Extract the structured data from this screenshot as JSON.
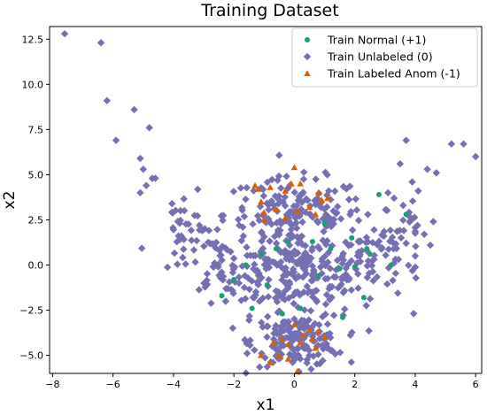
{
  "chart_data": {
    "type": "scatter",
    "title": "Training Dataset",
    "xlabel": "x1",
    "ylabel": "x2",
    "xlim": [
      -8.1,
      6.2
    ],
    "ylim": [
      -6.0,
      13.2
    ],
    "xticks": [
      -8,
      -6,
      -4,
      -2,
      0,
      2,
      4,
      6
    ],
    "yticks": [
      -5.0,
      -2.5,
      0.0,
      2.5,
      5.0,
      7.5,
      10.0,
      12.5
    ],
    "ytick_labels": [
      "−5.0",
      "−2.5",
      "0.0",
      "2.5",
      "5.0",
      "7.5",
      "10.0",
      "12.5"
    ],
    "xtick_labels": [
      "−8",
      "−6",
      "−4",
      "−2",
      "0",
      "2",
      "4",
      "6"
    ],
    "grid": false,
    "legend_position": "top-right",
    "series": [
      {
        "name": "Train Unlabeled (0)",
        "marker": "diamond",
        "color": "#7570b3",
        "points": [
          [
            -7.6,
            12.8
          ],
          [
            -6.4,
            12.3
          ],
          [
            -6.2,
            9.1
          ],
          [
            -5.9,
            6.9
          ],
          [
            -5.3,
            8.6
          ],
          [
            -5.1,
            5.9
          ],
          [
            -4.8,
            7.6
          ],
          [
            -4.7,
            4.8
          ],
          [
            -5.0,
            5.3
          ],
          [
            -4.9,
            4.4
          ],
          [
            -5.1,
            4.0
          ],
          [
            -4.6,
            4.8
          ],
          [
            6.0,
            6.0
          ],
          [
            5.6,
            6.7
          ],
          [
            5.2,
            6.7
          ],
          [
            4.7,
            5.1
          ],
          [
            4.4,
            5.3
          ],
          [
            4.1,
            4.1
          ],
          [
            3.9,
            4.6
          ],
          [
            3.7,
            6.9
          ],
          [
            3.5,
            5.6
          ],
          [
            3.6,
            3.3
          ],
          [
            3.3,
            3.7
          ],
          [
            3.1,
            4.0
          ],
          [
            3.8,
            2.7
          ],
          [
            4.6,
            2.4
          ],
          [
            4.3,
            1.7
          ],
          [
            4.5,
            1.1
          ],
          [
            4.0,
            0.5
          ],
          [
            3.7,
            1.2
          ]
        ],
        "cluster_top": {
          "center": [
            0.0,
            2.8
          ],
          "count": 170
        },
        "cluster_mid": {
          "center": [
            0.0,
            -0.4
          ],
          "count": 260
        },
        "cluster_bottom": {
          "center": [
            0.1,
            -4.2
          ],
          "count": 170
        },
        "wing_left": {
          "count": 60
        },
        "wing_right": {
          "count": 60
        }
      },
      {
        "name": "Train Normal (+1)",
        "marker": "circle",
        "color": "#1b9e77",
        "points": [
          [
            2.8,
            3.9
          ],
          [
            3.7,
            2.8
          ],
          [
            1.0,
            2.3
          ],
          [
            1.2,
            0.9
          ],
          [
            2.4,
            0.9
          ],
          [
            2.0,
            -0.1
          ],
          [
            1.5,
            -0.2
          ],
          [
            2.3,
            -1.8
          ],
          [
            1.6,
            -2.9
          ],
          [
            0.2,
            -2.4
          ],
          [
            -0.4,
            -2.7
          ],
          [
            -1.4,
            -2.4
          ],
          [
            -1.1,
            0.6
          ],
          [
            -1.6,
            0.0
          ],
          [
            -0.2,
            1.3
          ],
          [
            0.6,
            1.3
          ],
          [
            -2.0,
            -0.8
          ],
          [
            -2.4,
            -1.7
          ],
          [
            0.8,
            -0.6
          ],
          [
            -0.9,
            -1.1
          ],
          [
            2.5,
            0.6
          ],
          [
            3.2,
            0.0
          ],
          [
            -0.6,
            0.9
          ],
          [
            1.9,
            1.5
          ]
        ]
      },
      {
        "name": "Train Labeled Anom (-1)",
        "marker": "triangle",
        "color": "#d95f02",
        "points": [
          [
            0.0,
            5.4
          ],
          [
            -1.3,
            4.4
          ],
          [
            -1.2,
            4.2
          ],
          [
            -0.8,
            4.3
          ],
          [
            -0.1,
            4.5
          ],
          [
            0.2,
            4.5
          ],
          [
            -0.3,
            4.1
          ],
          [
            0.8,
            4.0
          ],
          [
            1.1,
            3.7
          ],
          [
            -1.1,
            3.5
          ],
          [
            -1.0,
            2.9
          ],
          [
            -0.6,
            3.1
          ],
          [
            0.1,
            3.0
          ],
          [
            0.5,
            3.2
          ],
          [
            0.7,
            2.8
          ],
          [
            -1.0,
            2.5
          ],
          [
            -0.3,
            2.6
          ],
          [
            0.9,
            3.6
          ],
          [
            0.0,
            -3.3
          ],
          [
            0.5,
            -3.6
          ],
          [
            0.8,
            -3.7
          ],
          [
            0.3,
            -3.9
          ],
          [
            -0.4,
            -4.1
          ],
          [
            -0.2,
            -4.4
          ],
          [
            0.2,
            -4.3
          ],
          [
            0.6,
            -4.1
          ],
          [
            1.0,
            -4.0
          ],
          [
            -1.1,
            -5.0
          ],
          [
            -0.5,
            -5.0
          ],
          [
            -0.2,
            -5.2
          ],
          [
            0.1,
            -5.9
          ],
          [
            -0.8,
            -5.4
          ],
          [
            0.7,
            -4.6
          ],
          [
            -0.7,
            -4.3
          ]
        ]
      }
    ]
  }
}
